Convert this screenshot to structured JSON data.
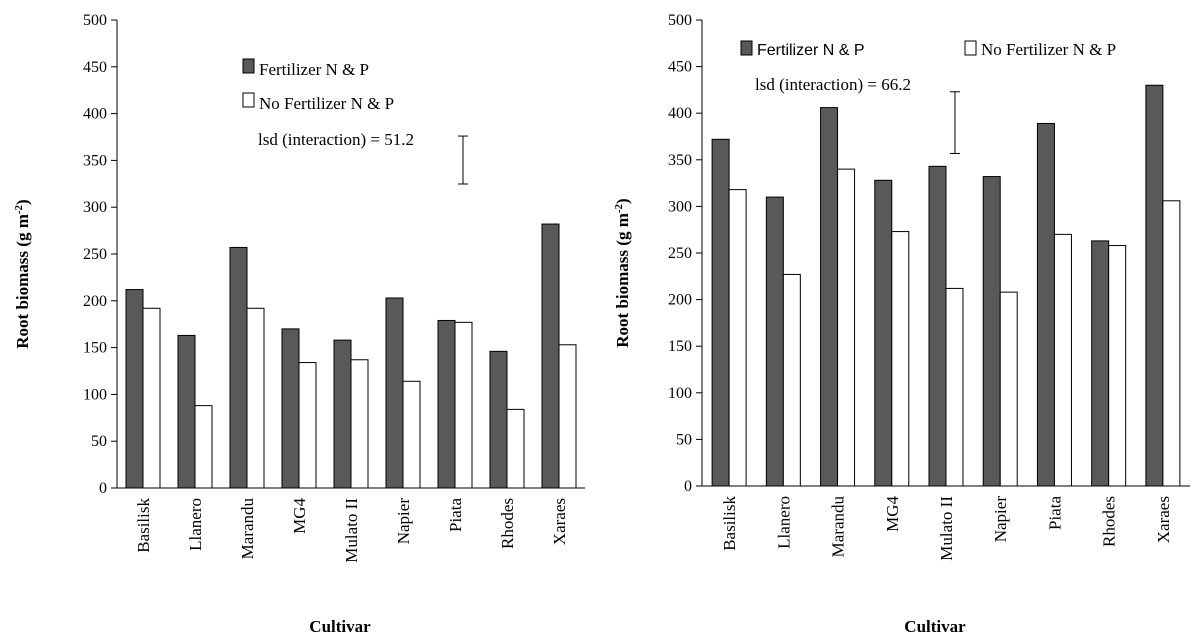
{
  "chart_data": [
    {
      "type": "bar",
      "categories": [
        "Basilisk",
        "Llanero",
        "Marandu",
        "MG4",
        "Mulato II",
        "Napier",
        "Piata",
        "Rhodes",
        "Xaraes"
      ],
      "series": [
        {
          "name": "Fertilizer N & P",
          "values": [
            212,
            163,
            257,
            170,
            158,
            203,
            179,
            146,
            282
          ],
          "color": "#595959"
        },
        {
          "name": "No Fertilizer N & P",
          "values": [
            192,
            88,
            192,
            134,
            137,
            114,
            177,
            84,
            153
          ],
          "color": "#ffffff"
        }
      ],
      "ylabel_main": "Root biomass  (g m",
      "ylabel_sup": "-2",
      "ylabel_close": ")",
      "xlabel": "Cultivar",
      "ylim": [
        0,
        500
      ],
      "yticks": [
        0,
        50,
        100,
        150,
        200,
        250,
        300,
        350,
        400,
        450,
        500
      ],
      "annotation": "lsd (interaction) = 51.2",
      "lsd_value": 51.2,
      "lsd_top": 376,
      "grid": false,
      "legend_position": "top-center"
    },
    {
      "type": "bar",
      "categories": [
        "Basilisk",
        "Llanero",
        "Marandu",
        "MG4",
        "Mulato II",
        "Napier",
        "Piata",
        "Rhodes",
        "Xaraes"
      ],
      "series": [
        {
          "name": "Fertilizer N & P",
          "values": [
            372,
            310,
            406,
            328,
            343,
            332,
            389,
            263,
            430
          ],
          "color": "#595959"
        },
        {
          "name": "No Fertilizer N & P",
          "values": [
            318,
            227,
            340,
            273,
            212,
            208,
            270,
            258,
            306
          ],
          "color": "#ffffff"
        }
      ],
      "ylabel_main": "Root biomass  (g m",
      "ylabel_sup": "-2",
      "ylabel_close": ")",
      "xlabel": "Cultivar",
      "ylim": [
        0,
        500
      ],
      "yticks": [
        0,
        50,
        100,
        150,
        200,
        250,
        300,
        350,
        400,
        450,
        500
      ],
      "annotation": "lsd (interaction) = 66.2",
      "lsd_value": 66.2,
      "lsd_top": 423,
      "grid": false,
      "legend_position": "top"
    }
  ]
}
